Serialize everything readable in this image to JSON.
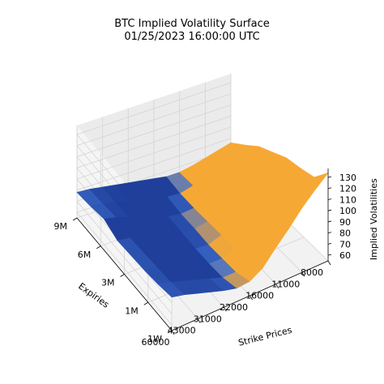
{
  "chart_data": {
    "type": "surface",
    "title": "BTC Implied Volatility Surface",
    "subtitle": "01/25/2023 16:00:00 UTC",
    "xlabel": "Strike Prices",
    "ylabel": "Expiries",
    "zlabel": "Implied Volatilities",
    "x_ticks": [
      "60000",
      "43000",
      "31000",
      "22000",
      "16000",
      "11000",
      "8000"
    ],
    "y_ticks": [
      "1W",
      "1M",
      "3M",
      "6M",
      "9M"
    ],
    "z_ticks": [
      "60",
      "70",
      "80",
      "90",
      "100",
      "110",
      "120",
      "130"
    ],
    "zlim": [
      55,
      138
    ],
    "colormap": [
      "#1f3f9a",
      "#3f6fd0",
      "#f6a834"
    ],
    "strikes": [
      60000,
      52000,
      43000,
      36000,
      31000,
      26000,
      22000,
      19000,
      16000,
      13500,
      11000,
      9500,
      8000
    ],
    "expiries_months": [
      0.25,
      1,
      2,
      3,
      4.5,
      6,
      7.5,
      9
    ],
    "implied_vol": [
      [
        85,
        82,
        78,
        74,
        70,
        67,
        68,
        75,
        88,
        100,
        113,
        124,
        134
      ],
      [
        82,
        79,
        75,
        71,
        67,
        63,
        63,
        68,
        79,
        90,
        101,
        110,
        118
      ],
      [
        80,
        78,
        74,
        70,
        66,
        62,
        62,
        66,
        76,
        86,
        97,
        106,
        114
      ],
      [
        79,
        77,
        73,
        69,
        65,
        62,
        61,
        65,
        74,
        84,
        94,
        103,
        111
      ],
      [
        78,
        76,
        73,
        69,
        66,
        63,
        62,
        64,
        71,
        80,
        89,
        97,
        104
      ],
      [
        83,
        80,
        76,
        71,
        67,
        64,
        62,
        63,
        69,
        76,
        84,
        91,
        97
      ],
      [
        80,
        78,
        75,
        72,
        69,
        66,
        64,
        63,
        66,
        71,
        77,
        82,
        86
      ],
      [
        78,
        77,
        75,
        73,
        71,
        69,
        67,
        65,
        65,
        67,
        70,
        73,
        76
      ]
    ]
  }
}
